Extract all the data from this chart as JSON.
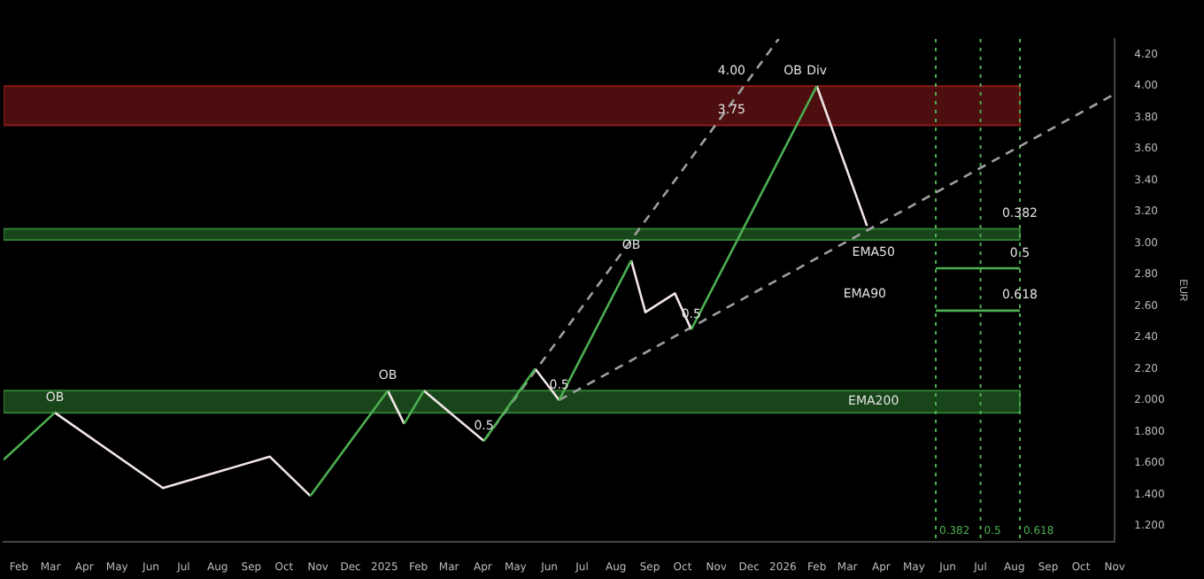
{
  "chart_data": {
    "type": "line",
    "ylabel": "EUR",
    "xlim": [
      "2024-01-18",
      "2026-11-01"
    ],
    "ylim": [
      1.1,
      4.3
    ],
    "xticks": [
      {
        "value": "2024-02",
        "label": "Feb"
      },
      {
        "value": "2024-03",
        "label": "Mar"
      },
      {
        "value": "2024-04",
        "label": "Apr"
      },
      {
        "value": "2024-05",
        "label": "May"
      },
      {
        "value": "2024-06",
        "label": "Jun"
      },
      {
        "value": "2024-07",
        "label": "Jul"
      },
      {
        "value": "2024-08",
        "label": "Aug"
      },
      {
        "value": "2024-09",
        "label": "Sep"
      },
      {
        "value": "2024-10",
        "label": "Oct"
      },
      {
        "value": "2024-11",
        "label": "Nov"
      },
      {
        "value": "2024-12",
        "label": "Dec"
      },
      {
        "value": "2025-01",
        "label": "2025"
      },
      {
        "value": "2025-02",
        "label": "Feb"
      },
      {
        "value": "2025-03",
        "label": "Mar"
      },
      {
        "value": "2025-04",
        "label": "Apr"
      },
      {
        "value": "2025-05",
        "label": "May"
      },
      {
        "value": "2025-06",
        "label": "Jun"
      },
      {
        "value": "2025-07",
        "label": "Jul"
      },
      {
        "value": "2025-08",
        "label": "Aug"
      },
      {
        "value": "2025-09",
        "label": "Sep"
      },
      {
        "value": "2025-10",
        "label": "Oct"
      },
      {
        "value": "2025-11",
        "label": "Nov"
      },
      {
        "value": "2025-12",
        "label": "Dec"
      },
      {
        "value": "2026-01",
        "label": "2026"
      },
      {
        "value": "2026-02",
        "label": "Feb"
      },
      {
        "value": "2026-03",
        "label": "Mar"
      },
      {
        "value": "2026-04",
        "label": "Apr"
      },
      {
        "value": "2026-05",
        "label": "May"
      },
      {
        "value": "2026-06",
        "label": "Jun"
      },
      {
        "value": "2026-07",
        "label": "Jul"
      },
      {
        "value": "2026-08",
        "label": "Aug"
      },
      {
        "value": "2026-09",
        "label": "Sep"
      },
      {
        "value": "2026-10",
        "label": "Oct"
      },
      {
        "value": "2026-11",
        "label": "Nov"
      }
    ],
    "yticks": [
      {
        "value": 1.2,
        "label": "1.200"
      },
      {
        "value": 1.4,
        "label": "1.400"
      },
      {
        "value": 1.6,
        "label": "1.600"
      },
      {
        "value": 1.8,
        "label": "1.800"
      },
      {
        "value": 2.0,
        "label": "2.000"
      },
      {
        "value": 2.2,
        "label": "2.20"
      },
      {
        "value": 2.4,
        "label": "2.40"
      },
      {
        "value": 2.6,
        "label": "2.60"
      },
      {
        "value": 2.8,
        "label": "2.80"
      },
      {
        "value": 3.0,
        "label": "3.00"
      },
      {
        "value": 3.2,
        "label": "3.20"
      },
      {
        "value": 3.4,
        "label": "3.40"
      },
      {
        "value": 3.6,
        "label": "3.60"
      },
      {
        "value": 3.8,
        "label": "3.80"
      },
      {
        "value": 4.0,
        "label": "4.00"
      },
      {
        "value": 4.2,
        "label": "4.20"
      }
    ],
    "grid": false,
    "legend": false,
    "marker": "none",
    "series": [
      {
        "color": "#4caf50",
        "x": [
          "2024-01-18",
          "2024-03-05",
          "2024-06-01",
          "2024-10-25",
          "2025-01-04",
          "2025-01-10",
          "2025-01-19",
          "2025-02-06",
          "2025-03-01",
          "2025-04-02",
          "2025-05-19",
          "2025-06-01",
          "2025-06-10",
          "2025-08-15",
          "2025-09-01",
          "2025-10-09",
          "2026-02-01"
        ],
        "values": [
          1.62,
          1.92,
          null,
          1.39,
          2.06,
          null,
          1.85,
          2.06,
          null,
          1.74,
          2.2,
          null,
          2.0,
          2.89,
          null,
          2.45,
          4.0
        ]
      },
      {
        "color": "#f2e6e6",
        "x": [
          "2024-03-05",
          "2024-06-12",
          "2024-09-18",
          "2024-10-25",
          "2024-12-01",
          "2025-01-04",
          "2025-01-19",
          "2025-01-25",
          "2025-02-06",
          "2025-04-02",
          "2025-05-01",
          "2025-05-19",
          "2025-06-10",
          "2025-07-01",
          "2025-08-15",
          "2025-08-28",
          "2025-09-24",
          "2025-10-09",
          "2025-12-01",
          "2026-02-01",
          "2026-03-19"
        ],
        "values": [
          1.92,
          1.44,
          1.64,
          1.39,
          null,
          2.06,
          1.85,
          null,
          2.06,
          1.74,
          null,
          2.2,
          2.0,
          null,
          2.89,
          2.56,
          2.68,
          2.45,
          null,
          4.0,
          3.11
        ]
      },
      {
        "color": "#9e9e9e",
        "line_style": "dashed",
        "x": [
          "2025-04-02",
          "2025-12-28"
        ],
        "values": [
          1.74,
          4.3
        ]
      },
      {
        "color": "#9e9e9e",
        "line_style": "dashed",
        "x": [
          "2025-06-10",
          "2026-11-01"
        ],
        "values": [
          2.0,
          3.95
        ]
      },
      {
        "color": "#4caf50",
        "x": [
          "2026-05-21",
          "2026-08-06"
        ],
        "values": [
          2.84,
          2.84
        ]
      },
      {
        "color": "#4caf50",
        "x": [
          "2026-05-21",
          "2026-08-06"
        ],
        "values": [
          2.57,
          2.57
        ]
      }
    ],
    "bands": [
      {
        "axis": "y",
        "from": 3.75,
        "to": 4.0,
        "color": "#8b1a1a"
      },
      {
        "axis": "y",
        "from": 3.02,
        "to": 3.09,
        "color": "#2e7d32",
        "label": "EMA50"
      },
      {
        "axis": "y",
        "from": 1.92,
        "to": 2.06,
        "color": "#2e7d32",
        "label": "EMA200"
      }
    ],
    "ref_lines": [
      {
        "axis": "x",
        "value": "2026-05-21",
        "label": "0.382",
        "color": "#4caf50",
        "line_style": "dotted"
      },
      {
        "axis": "x",
        "value": "2026-07-01",
        "label": "0.5",
        "color": "#4caf50",
        "line_style": "dotted"
      },
      {
        "axis": "x",
        "value": "2026-08-06",
        "label": "0.618",
        "color": "#4caf50",
        "line_style": "dotted"
      }
    ],
    "annotations": [
      {
        "text": "OB",
        "x": "2024-03-05",
        "y": 1.92
      },
      {
        "text": "OB",
        "x": "2025-01-04",
        "y": 2.06
      },
      {
        "text": "OB",
        "x": "2025-08-15",
        "y": 2.89
      },
      {
        "text": "OB",
        "x": "2026-01-10",
        "y": 4.0
      },
      {
        "text": "Div",
        "x": "2026-02-01",
        "y": 4.0
      },
      {
        "text": "0.5",
        "x": "2025-04-02",
        "y": 1.74
      },
      {
        "text": "0.5",
        "x": "2025-06-10",
        "y": 2.0
      },
      {
        "text": "0.5",
        "x": "2025-10-09",
        "y": 2.45
      },
      {
        "text": "0.382",
        "x": "2026-08-06",
        "y": 3.09
      },
      {
        "text": "0.5",
        "x": "2026-08-06",
        "y": 2.84
      },
      {
        "text": "0.618",
        "x": "2026-08-06",
        "y": 2.57
      },
      {
        "text": "4.00",
        "x": "2025-11-15",
        "y": 4.0
      },
      {
        "text": "3.75",
        "x": "2025-11-15",
        "y": 3.75
      },
      "EMA90"
    ]
  }
}
